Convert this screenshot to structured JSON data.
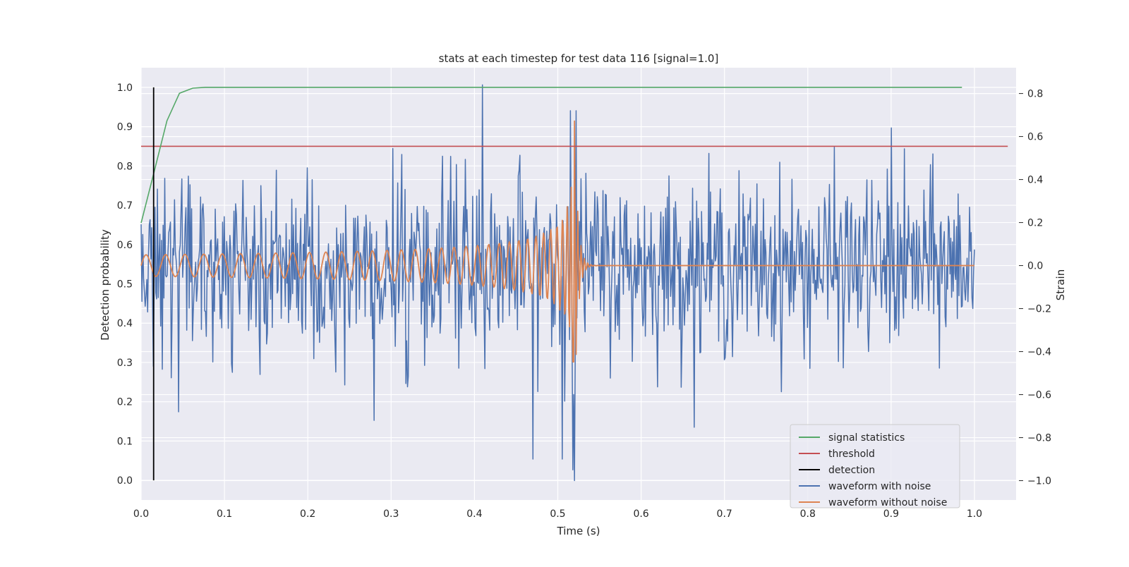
{
  "chart_data": {
    "type": "line",
    "title": "stats at each timestep for test data 116 [signal=1.0]",
    "xlabel": "Time (s)",
    "ylabel_left": "Detection probability",
    "ylabel_right": "Strain",
    "xlim": [
      0.0,
      1.05
    ],
    "ylim_left": [
      -0.05,
      1.05
    ],
    "ylim_right": [
      -1.09,
      0.92
    ],
    "x_ticks": [
      "0.0",
      "0.1",
      "0.2",
      "0.3",
      "0.4",
      "0.5",
      "0.6",
      "0.7",
      "0.8",
      "0.9",
      "1.0"
    ],
    "y_left_ticks": [
      "0.0",
      "0.1",
      "0.2",
      "0.3",
      "0.4",
      "0.5",
      "0.6",
      "0.7",
      "0.8",
      "0.9",
      "1.0"
    ],
    "y_right_ticks": [
      "−1.0",
      "−0.8",
      "−0.6",
      "−0.4",
      "−0.2",
      "0.0",
      "0.2",
      "0.4",
      "0.6",
      "0.8"
    ],
    "grid": true,
    "legend_position": "bottom-right",
    "colors": {
      "background": "#eaeaf2",
      "grid": "#ffffff",
      "signal_statistics": "#55a868",
      "threshold": "#c44e52",
      "detection": "#000000",
      "waveform_with_noise": "#4c72b0",
      "waveform_without_noise": "#dd8452"
    },
    "legend": [
      {
        "label": "signal statistics",
        "color": "#55a868"
      },
      {
        "label": "threshold",
        "color": "#c44e52"
      },
      {
        "label": "detection",
        "color": "#000000"
      },
      {
        "label": "waveform with noise",
        "color": "#4c72b0"
      },
      {
        "label": "waveform without noise",
        "color": "#dd8452"
      }
    ],
    "series": [
      {
        "name": "signal statistics",
        "axis": "left",
        "x": [
          0.0,
          0.015,
          0.031,
          0.046,
          0.062,
          0.077,
          0.092,
          0.2,
          0.4,
          0.6,
          0.8,
          0.985
        ],
        "y": [
          0.655,
          0.78,
          0.915,
          0.985,
          0.998,
          1.0,
          1.0,
          1.0,
          1.0,
          1.0,
          1.0,
          1.0
        ]
      },
      {
        "name": "threshold",
        "axis": "left",
        "x": [
          0.0,
          1.04
        ],
        "y": [
          0.85,
          0.85
        ]
      },
      {
        "name": "detection",
        "axis": "left",
        "x": [
          0.015,
          0.015
        ],
        "y": [
          0.0,
          1.0
        ]
      },
      {
        "name": "waveform with noise",
        "axis": "right",
        "description_points": "dense noisy strain, approx. 1024 samples between 0 and 1 s, values mostly within -0.5 to 0.5",
        "x_range": [
          0.0,
          1.0
        ],
        "extremes": [
          {
            "x": 0.045,
            "y": -0.68
          },
          {
            "x": 0.28,
            "y": -0.72
          },
          {
            "x": 0.41,
            "y": 0.84
          },
          {
            "x": 0.47,
            "y": -0.9
          },
          {
            "x": 0.505,
            "y": -0.9
          },
          {
            "x": 0.515,
            "y": 0.72
          },
          {
            "x": 0.52,
            "y": -1.0
          },
          {
            "x": 0.522,
            "y": 0.72
          },
          {
            "x": 0.9,
            "y": 0.64
          }
        ]
      },
      {
        "name": "waveform without noise",
        "axis": "right",
        "description_points": "chirp oscillation growing in amplitude and frequency until merger near 0.52 s, then ringdown to 0",
        "x_range": [
          0.0,
          1.0
        ],
        "merger_time": 0.52,
        "peak_amplitude": 0.68
      }
    ]
  }
}
